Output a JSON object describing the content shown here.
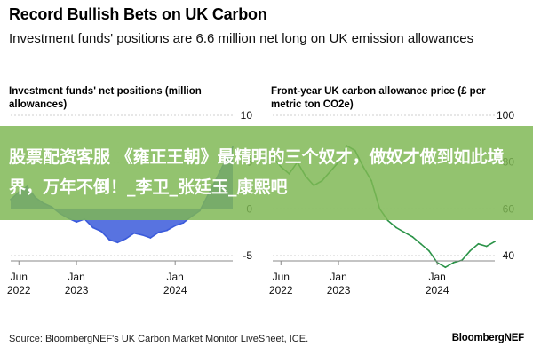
{
  "header": {
    "title": "Record Bullish Bets on UK Carbon",
    "subtitle": "Investment funds' positions are 6.6 million net long on UK emission allowances"
  },
  "chart_data": [
    {
      "type": "area",
      "title": "Investment funds' net positions (million allowances)",
      "xlabel": "",
      "ylabel": "",
      "x_ticks": [
        "Jun 2022",
        "Jan 2023",
        "Jan 2024"
      ],
      "y_ticks": [
        10,
        5,
        0,
        -5
      ],
      "ylim": [
        -5,
        10
      ],
      "xlim": [
        "2022-05",
        "2024-08"
      ],
      "grid": true,
      "color": "#3b5bdb",
      "series": [
        {
          "x": [
            "2022-05",
            "2022-06",
            "2022-07",
            "2022-08",
            "2022-09",
            "2022-10",
            "2022-11",
            "2022-12",
            "2023-01",
            "2023-02",
            "2023-03",
            "2023-04",
            "2023-05",
            "2023-06",
            "2023-07",
            "2023-08",
            "2023-09",
            "2023-10",
            "2023-11",
            "2023-12",
            "2024-01",
            "2024-02",
            "2024-03",
            "2024-04",
            "2024-05",
            "2024-06",
            "2024-07",
            "2024-08"
          ],
          "values": [
            1.0,
            1.8,
            2.4,
            1.2,
            0.6,
            0.2,
            -0.5,
            -1.0,
            -1.4,
            -1.1,
            -2.0,
            -2.4,
            -3.3,
            -3.6,
            -3.2,
            -2.6,
            -2.8,
            -3.1,
            -2.5,
            -2.3,
            -1.8,
            -1.5,
            -0.8,
            -0.2,
            1.5,
            3.2,
            5.0,
            6.6
          ]
        }
      ]
    },
    {
      "type": "line",
      "title": "Front-year UK carbon allowance price (£ per metric ton CO2e)",
      "xlabel": "",
      "ylabel": "",
      "x_ticks": [
        "Jun 2022",
        "Jan 2023",
        "Jan 2024"
      ],
      "y_ticks": [
        100,
        80,
        60,
        40
      ],
      "ylim": [
        40,
        100
      ],
      "xlim": [
        "2022-05",
        "2024-08"
      ],
      "grid": true,
      "color": "#2b9348",
      "series": [
        {
          "x": [
            "2022-05",
            "2022-06",
            "2022-07",
            "2022-08",
            "2022-09",
            "2022-10",
            "2022-11",
            "2022-12",
            "2023-01",
            "2023-02",
            "2023-03",
            "2023-04",
            "2023-05",
            "2023-06",
            "2023-07",
            "2023-08",
            "2023-09",
            "2023-10",
            "2023-11",
            "2023-12",
            "2024-01",
            "2024-02",
            "2024-03",
            "2024-04",
            "2024-05",
            "2024-06",
            "2024-07",
            "2024-08"
          ],
          "values": [
            82,
            78,
            75,
            80,
            74,
            70,
            72,
            76,
            80,
            87,
            85,
            78,
            72,
            60,
            55,
            52,
            50,
            48,
            45,
            42,
            37,
            35,
            37,
            38,
            42,
            45,
            44,
            46
          ]
        }
      ]
    }
  ],
  "overlay_banner": {
    "text": "股票配资客服 《雍正王朝》最精明的三个奴才，做奴才做到如此境界，万年不倒！_李卫_张廷玉_康熙吧"
  },
  "footer": {
    "source": "Source: BloombergNEF's UK Carbon Market Monitor LiveSheet, ICE.",
    "brand": "BloombergNEF"
  }
}
